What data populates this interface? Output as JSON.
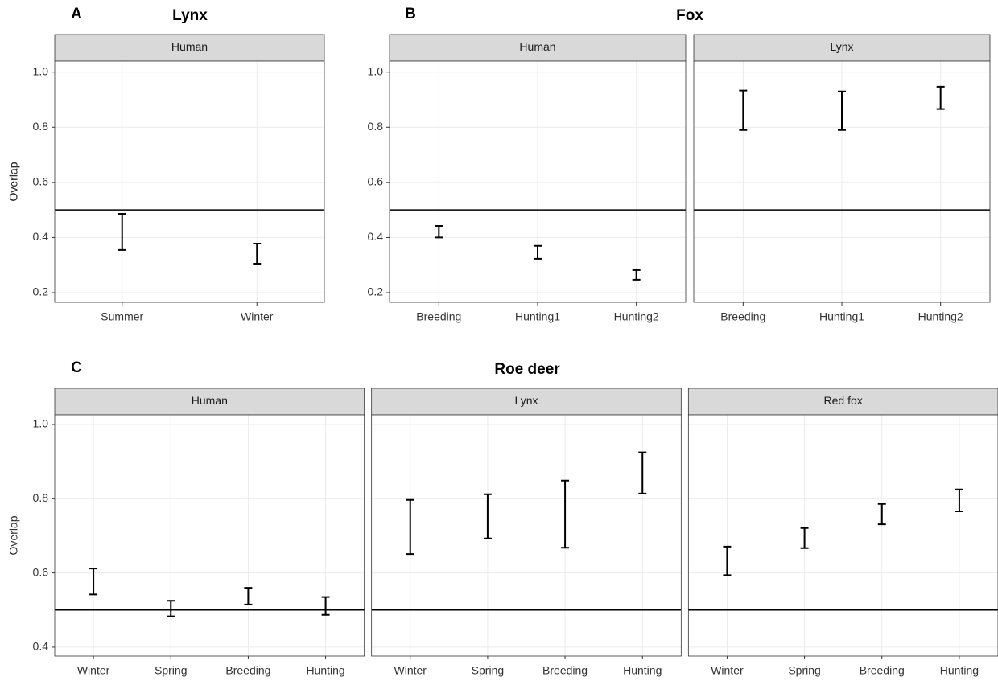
{
  "chart_data": [
    {
      "type": "errorbar",
      "panel_label": "A",
      "title": "Lynx",
      "y_label": "Overlap",
      "ylim": [
        0.165,
        1.04
      ],
      "yticks": [
        0.2,
        0.4,
        0.6,
        0.8,
        {
          "value": 1,
          "label": "1.0"
        }
      ],
      "reference_line": 0.5,
      "facets": [
        {
          "name": "Human",
          "categories": [
            "Summer",
            "Winter"
          ],
          "low": [
            0.355,
            0.305
          ],
          "high": [
            0.486,
            0.378
          ]
        }
      ]
    },
    {
      "type": "errorbar",
      "panel_label": "B",
      "title": "Fox",
      "y_label": "Overlap",
      "ylim": [
        0.165,
        1.04
      ],
      "yticks": [
        0.2,
        0.4,
        0.6,
        0.8,
        {
          "value": 1,
          "label": "1.0"
        }
      ],
      "reference_line": 0.5,
      "facets": [
        {
          "name": "Human",
          "categories": [
            "Breeding",
            "Hunting1",
            "Hunting2"
          ],
          "low": [
            0.4,
            0.323,
            0.247
          ],
          "high": [
            0.442,
            0.37,
            0.282
          ]
        },
        {
          "name": "Lynx",
          "categories": [
            "Breeding",
            "Hunting1",
            "Hunting2"
          ],
          "low": [
            0.79,
            0.79,
            0.866
          ],
          "high": [
            0.933,
            0.93,
            0.947
          ]
        }
      ]
    },
    {
      "type": "errorbar",
      "panel_label": "C",
      "title": "Roe deer",
      "y_label": "Overlap",
      "ylim": [
        0.376,
        1.026
      ],
      "yticks": [
        0.4,
        0.6,
        0.8,
        {
          "value": 1,
          "label": "1.0"
        }
      ],
      "reference_line": 0.5,
      "facets": [
        {
          "name": "Human",
          "categories": [
            "Winter",
            "Spring",
            "Breeding",
            "Hunting"
          ],
          "low": [
            0.542,
            0.483,
            0.515,
            0.487
          ],
          "high": [
            0.612,
            0.525,
            0.56,
            0.535
          ]
        },
        {
          "name": "Lynx",
          "categories": [
            "Winter",
            "Spring",
            "Breeding",
            "Hunting"
          ],
          "low": [
            0.651,
            0.693,
            0.668,
            0.814
          ],
          "high": [
            0.797,
            0.812,
            0.849,
            0.925
          ]
        },
        {
          "name": "Red fox",
          "categories": [
            "Winter",
            "Spring",
            "Breeding",
            "Hunting"
          ],
          "low": [
            0.594,
            0.667,
            0.731,
            0.766
          ],
          "high": [
            0.671,
            0.721,
            0.786,
            0.825
          ]
        }
      ]
    }
  ]
}
